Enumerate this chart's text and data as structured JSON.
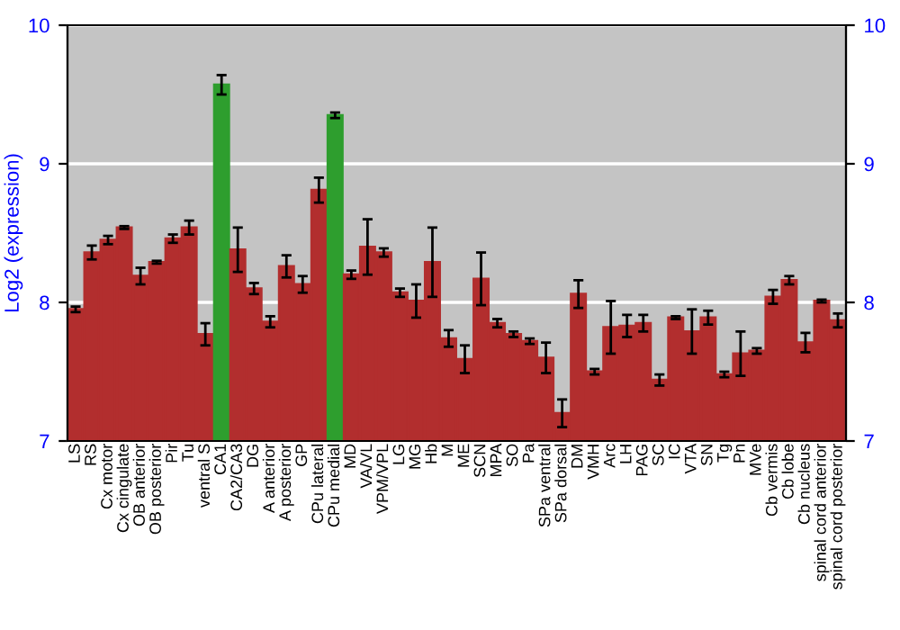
{
  "chart_data": {
    "type": "bar",
    "ylabel": "Log2 (expression)",
    "categories": [
      "LS",
      "RS",
      "Cx motor",
      "Cx cingulate",
      "OB anterior",
      "OB posterior",
      "Pir",
      "Tu",
      "ventral S",
      "CA1",
      "CA2/CA3",
      "DG",
      "A anterior",
      "A posterior",
      "GP",
      "CPu lateral",
      "CPu medial",
      "MD",
      "VA/VL",
      "VPM/VPL",
      "LG",
      "MG",
      "Hb",
      "M",
      "ME",
      "SCN",
      "MPA",
      "SO",
      "Pa",
      "SPa ventral",
      "SPa dorsal",
      "DM",
      "VMH",
      "Arc",
      "LH",
      "PAG",
      "SC",
      "IC",
      "VTA",
      "SN",
      "Tg",
      "Pn",
      "MVe",
      "Cb vermis",
      "Cb lobe",
      "Cb nucleus",
      "spinal cord anterior",
      "spinal cord posterior"
    ],
    "values": [
      7.95,
      8.36,
      8.45,
      8.54,
      8.19,
      8.29,
      8.46,
      8.54,
      7.77,
      9.57,
      8.38,
      8.1,
      7.86,
      8.26,
      8.13,
      8.81,
      9.35,
      8.2,
      8.4,
      8.36,
      8.07,
      8.01,
      8.29,
      7.74,
      7.59,
      8.17,
      7.85,
      7.77,
      7.72,
      7.6,
      7.2,
      8.06,
      7.5,
      7.82,
      7.83,
      7.85,
      7.44,
      7.89,
      7.79,
      7.89,
      7.48,
      7.63,
      7.65,
      8.04,
      8.16,
      7.71,
      8.01,
      7.87
    ],
    "errors": [
      0.02,
      0.05,
      0.03,
      0.01,
      0.06,
      0.01,
      0.03,
      0.05,
      0.08,
      0.07,
      0.16,
      0.04,
      0.04,
      0.08,
      0.06,
      0.09,
      0.02,
      0.03,
      0.2,
      0.03,
      0.03,
      0.12,
      0.25,
      0.06,
      0.1,
      0.19,
      0.03,
      0.02,
      0.02,
      0.11,
      0.1,
      0.1,
      0.02,
      0.19,
      0.08,
      0.06,
      0.04,
      0.01,
      0.16,
      0.05,
      0.02,
      0.16,
      0.02,
      0.05,
      0.03,
      0.07,
      0.01,
      0.05
    ],
    "colors": [
      "#b22e2e",
      "#b22e2e",
      "#b22e2e",
      "#b22e2e",
      "#b22e2e",
      "#b22e2e",
      "#b22e2e",
      "#b22e2e",
      "#b22e2e",
      "#2e9e2e",
      "#b22e2e",
      "#b22e2e",
      "#b22e2e",
      "#b22e2e",
      "#b22e2e",
      "#b22e2e",
      "#2e9e2e",
      "#b22e2e",
      "#b22e2e",
      "#b22e2e",
      "#b22e2e",
      "#b22e2e",
      "#b22e2e",
      "#b22e2e",
      "#b22e2e",
      "#b22e2e",
      "#b22e2e",
      "#b22e2e",
      "#b22e2e",
      "#b22e2e",
      "#b22e2e",
      "#b22e2e",
      "#b22e2e",
      "#b22e2e",
      "#b22e2e",
      "#b22e2e",
      "#b22e2e",
      "#b22e2e",
      "#b22e2e",
      "#b22e2e",
      "#b22e2e",
      "#b22e2e",
      "#b22e2e",
      "#b22e2e",
      "#b22e2e",
      "#b22e2e",
      "#b22e2e",
      "#b22e2e"
    ],
    "ylim": [
      7,
      10
    ],
    "yticks": [
      7,
      8,
      9,
      10
    ],
    "y2lim": [
      7,
      10
    ],
    "y2ticks": [
      7,
      8,
      9,
      10
    ],
    "grid": "y"
  }
}
